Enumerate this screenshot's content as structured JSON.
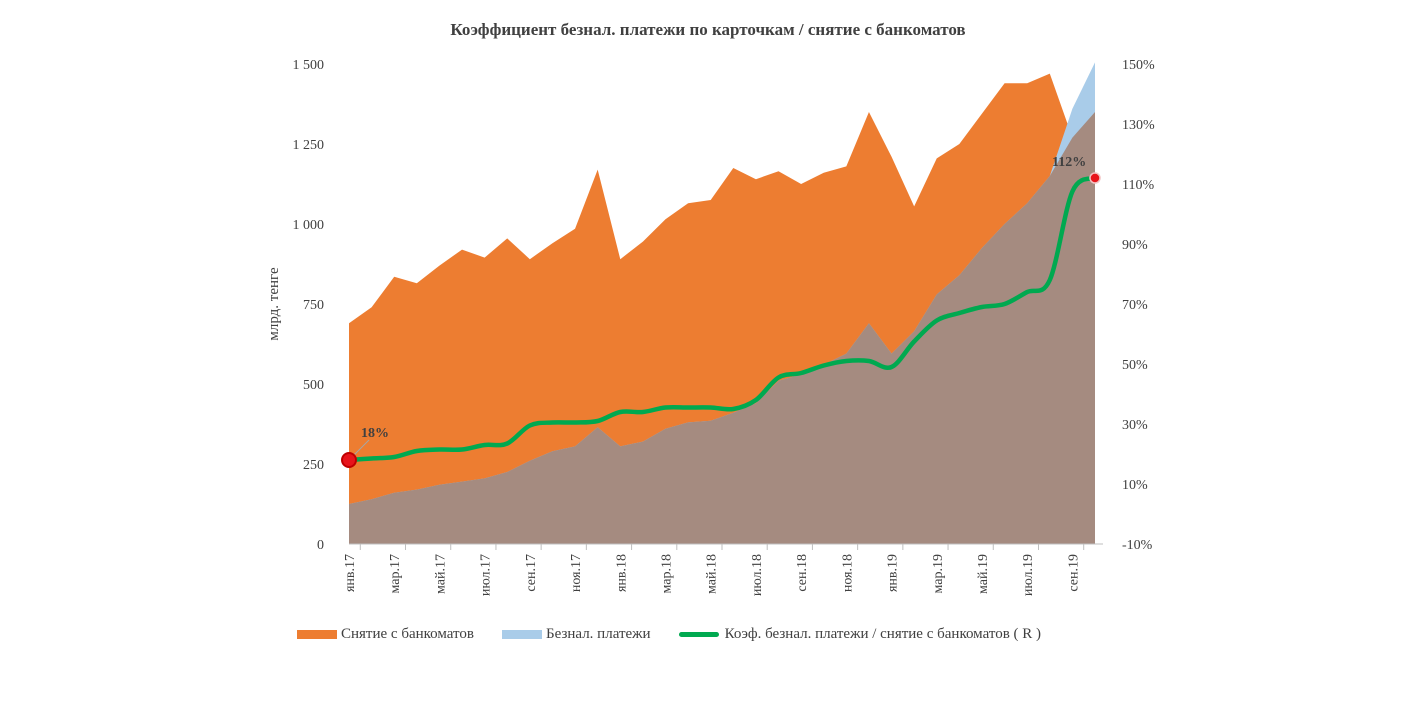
{
  "chart_data": {
    "type": "area",
    "title": "Коэффициент безнал. платежи по карточкам / снятие с банкоматов",
    "ylabel": "млрд. тенге",
    "ylim": [
      0,
      1500
    ],
    "y2lim": [
      -10,
      150
    ],
    "y_ticks": [
      "0",
      "250",
      "500",
      "750",
      "1 000",
      "1 250",
      "1 500"
    ],
    "y2_ticks": [
      "-10%",
      "10%",
      "30%",
      "50%",
      "70%",
      "90%",
      "110%",
      "130%",
      "150%"
    ],
    "x": [
      "янв.17",
      "фев.17",
      "мар.17",
      "апр.17",
      "май.17",
      "июн.17",
      "июл.17",
      "авг.17",
      "сен.17",
      "окт.17",
      "ноя.17",
      "дек.17",
      "янв.18",
      "фев.18",
      "мар.18",
      "апр.18",
      "май.18",
      "июн.18",
      "июл.18",
      "авг.18",
      "сен.18",
      "окт.18",
      "ноя.18",
      "дек.18",
      "янв.19",
      "фев.19",
      "мар.19",
      "апр.19",
      "май.19",
      "июн.19",
      "июл.19",
      "авг.19",
      "сен.19",
      "окт.19"
    ],
    "x_tick_labels": [
      "янв.17",
      "мар.17",
      "май.17",
      "июл.17",
      "сен.17",
      "ноя.17",
      "янв.18",
      "мар.18",
      "май.18",
      "июл.18",
      "сен.18",
      "ноя.18",
      "янв.19",
      "мар.19",
      "май.19",
      "июл.19",
      "сен.19"
    ],
    "series": [
      {
        "name": "Снятие с банкоматов",
        "kind": "area",
        "axis": "left",
        "color": "#ED7D31",
        "values": [
          690,
          740,
          835,
          815,
          870,
          920,
          895,
          955,
          890,
          940,
          985,
          1170,
          890,
          945,
          1015,
          1065,
          1075,
          1175,
          1140,
          1165,
          1125,
          1160,
          1180,
          1350,
          1210,
          1055,
          1205,
          1250,
          1345,
          1440,
          1440,
          1470,
          1270,
          1350
        ]
      },
      {
        "name": "Безнал. платежи",
        "kind": "area",
        "axis": "left",
        "color": "#A9CCE9",
        "values": [
          125,
          140,
          160,
          170,
          185,
          195,
          205,
          225,
          260,
          290,
          305,
          365,
          305,
          320,
          360,
          380,
          385,
          410,
          440,
          510,
          530,
          560,
          595,
          690,
          595,
          665,
          780,
          840,
          925,
          1000,
          1065,
          1150,
          1360,
          1505
        ]
      },
      {
        "name": "Коэф. безнал. платежи / снятие с банкоматов ( R )",
        "kind": "line",
        "axis": "right",
        "color": "#00A950",
        "values": [
          18,
          18.5,
          19,
          21,
          21.5,
          21.5,
          23,
          23.5,
          29.5,
          30.5,
          30.5,
          31,
          34,
          34,
          35.5,
          35.5,
          35.5,
          35,
          38,
          45.5,
          47,
          49.5,
          51,
          51,
          49,
          57.5,
          64.5,
          67,
          69,
          70,
          74,
          78,
          107.5,
          112
        ]
      }
    ],
    "overlap_color": "#A58B80",
    "annotations": [
      {
        "label": "18%",
        "series_index": 2,
        "point_index": 0
      },
      {
        "label": "112%",
        "series_index": 2,
        "point_index": 33
      }
    ],
    "grid": false,
    "legend_position": "bottom"
  },
  "legend": {
    "items": [
      {
        "label": "Снятие с банкоматов",
        "color": "#ED7D31"
      },
      {
        "label": "Безнал. платежи",
        "color": "#A9CCE9"
      },
      {
        "label": "Коэф. безнал. платежи / снятие с банкоматов ( R )",
        "color": "#00A950"
      }
    ]
  }
}
